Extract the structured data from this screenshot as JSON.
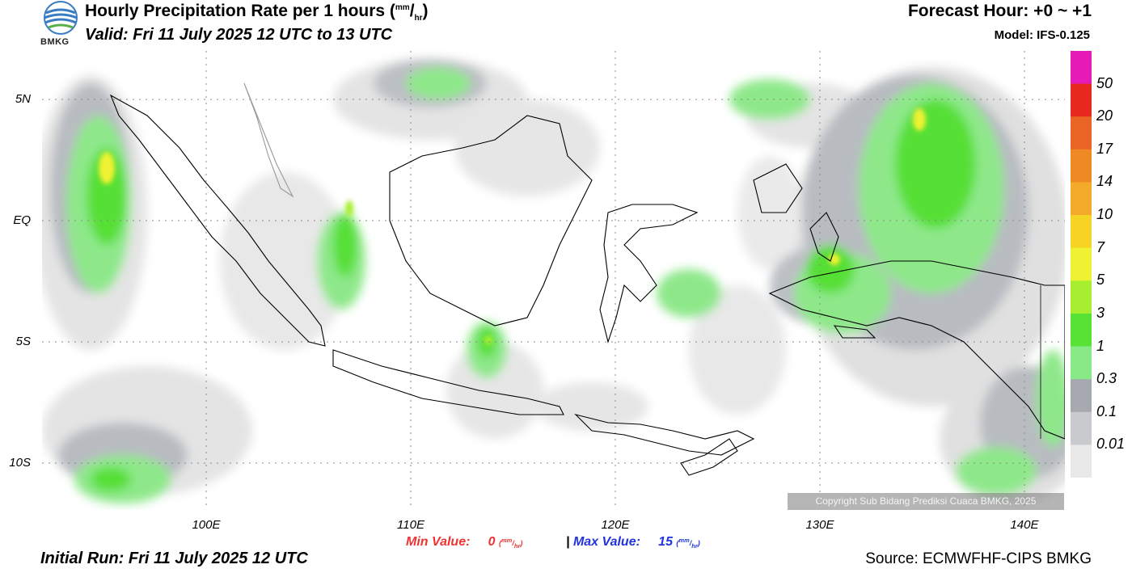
{
  "header": {
    "title_main": "Hourly Precipitation Rate per 1 hours (",
    "title_unit_num": "mm",
    "title_unit_den": "hr",
    "title_close": ")",
    "valid": "Valid: Fri 11 July 2025 12 UTC to 13 UTC",
    "forecast_hour": "Forecast Hour: +0 ~ +1",
    "model": "Model: IFS-0.125"
  },
  "logo": {
    "text": "BMKG",
    "icon": "bmkg-globe-logo"
  },
  "axes": {
    "lat_labels": [
      "5N",
      "EQ",
      "5S",
      "10S"
    ],
    "lon_labels": [
      "100E",
      "110E",
      "120E",
      "130E",
      "140E"
    ]
  },
  "colorbar": {
    "levels": [
      "50",
      "20",
      "17",
      "14",
      "10",
      "7",
      "5",
      "3",
      "1",
      "0.3",
      "0.1",
      "0.01"
    ],
    "colors": [
      "#e41bb6",
      "#e6281e",
      "#ea6426",
      "#ee8a24",
      "#f2aa28",
      "#f6d426",
      "#eef232",
      "#a8ee30",
      "#58e236",
      "#88ea86",
      "#a6aab0",
      "#c8cacd",
      "#e8e8e8"
    ]
  },
  "stats": {
    "min_label": "Min Value:",
    "min_value": "0",
    "max_label": "Max Value:",
    "max_value": "15",
    "unit_num": "mm",
    "unit_den": "hr",
    "separator": "|",
    "min_color": "#ee3333",
    "max_color": "#2233dd"
  },
  "footer": {
    "initial_run": "Initial Run: Fri 11 July 2025 12 UTC",
    "source": "Source: ECMWFHF-CIPS BMKG",
    "copyright": "Copyright Sub Bidang Prediksi Cuaca BMKG, 2025"
  }
}
